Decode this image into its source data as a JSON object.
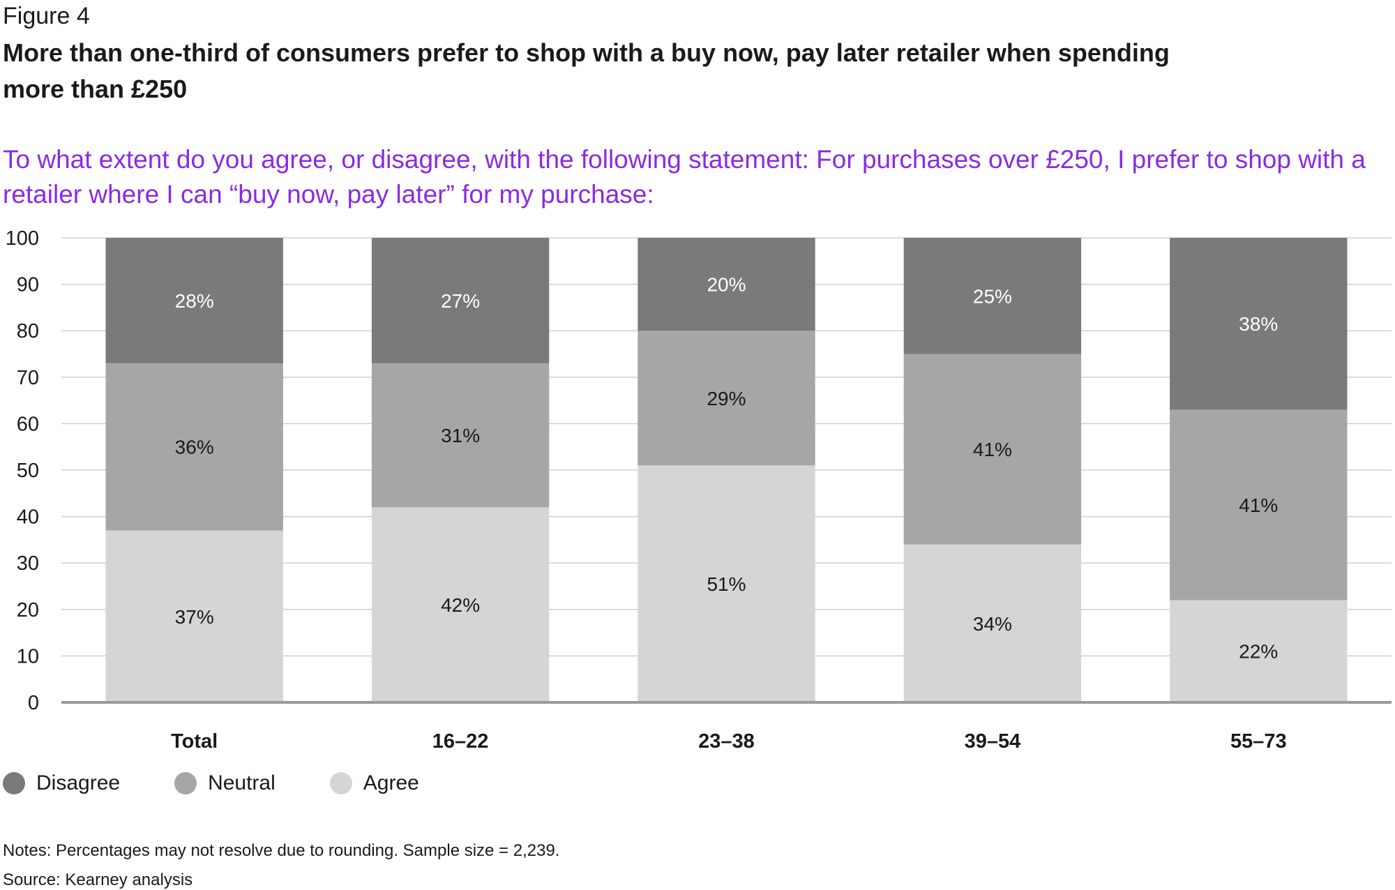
{
  "figure_label": "Figure 4",
  "title": "More than one-third of consumers prefer to shop with a buy now, pay later retailer when spending more than £250",
  "question": "To what extent do you agree, or disagree, with the following statement: For purchases over £250, I prefer to shop with a retailer where I can “buy now, pay later” for my purchase:",
  "notes": "Notes: Percentages may not resolve due to rounding. Sample size = 2,239.",
  "source": "Source: Kearney analysis",
  "colors": {
    "disagree": "#7a7a7a",
    "neutral": "#a6a6a6",
    "agree": "#d5d5d5",
    "accent": "#8a2be2"
  },
  "chart_data": {
    "type": "bar",
    "stacked": true,
    "categories": [
      "Total",
      "16–22",
      "23–38",
      "39–54",
      "55–73"
    ],
    "series": [
      {
        "name": "Agree",
        "values": [
          37,
          42,
          51,
          34,
          22
        ],
        "labels": [
          "37%",
          "42%",
          "51%",
          "34%",
          "22%"
        ]
      },
      {
        "name": "Neutral",
        "values": [
          36,
          31,
          29,
          41,
          41
        ],
        "labels": [
          "36%",
          "31%",
          "29%",
          "41%",
          "41%"
        ]
      },
      {
        "name": "Disagree",
        "values": [
          28,
          27,
          20,
          25,
          38
        ],
        "labels": [
          "28%",
          "27%",
          "20%",
          "25%",
          "38%"
        ]
      }
    ],
    "ylim": [
      0,
      100
    ],
    "yticks": [
      "0",
      "10",
      "20",
      "30",
      "40",
      "50",
      "60",
      "70",
      "80",
      "90",
      "100"
    ],
    "grid": true,
    "legend": [
      "Disagree",
      "Neutral",
      "Agree"
    ],
    "legend_position": "bottom-left"
  }
}
